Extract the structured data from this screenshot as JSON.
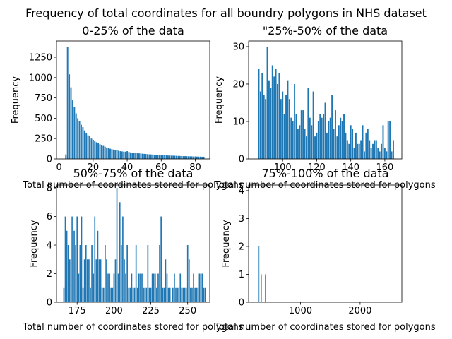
{
  "suptitle": "Frequency of total coordinates for all boundry polygons in NHS dataset",
  "bar_color": "#1f77b4",
  "chart_data": [
    {
      "type": "bar",
      "title": "0-25% of the data",
      "xlabel": "Total number of coordinates stored for polygons",
      "ylabel": "Frequency",
      "xlim": [
        -1.5,
        88.5
      ],
      "ylim": [
        0,
        1450
      ],
      "xticks": [
        0,
        20,
        40,
        60,
        80
      ],
      "xtick_labels": [
        "0",
        "20",
        "40",
        "60",
        "80"
      ],
      "yticks": [
        0,
        250,
        500,
        750,
        1000,
        1250
      ],
      "ytick_labels": [
        "0",
        "250",
        "500",
        "750",
        "1000",
        "1250"
      ],
      "grid": false,
      "bar_width": 0.8,
      "x": [
        4,
        5,
        6,
        7,
        8,
        9,
        10,
        11,
        12,
        13,
        14,
        15,
        16,
        17,
        18,
        19,
        20,
        21,
        22,
        23,
        24,
        25,
        26,
        27,
        28,
        29,
        30,
        31,
        32,
        33,
        34,
        35,
        36,
        37,
        38,
        39,
        40,
        41,
        42,
        43,
        44,
        45,
        46,
        47,
        48,
        49,
        50,
        51,
        52,
        53,
        54,
        55,
        56,
        57,
        58,
        59,
        60,
        61,
        62,
        63,
        64,
        65,
        66,
        67,
        68,
        69,
        70,
        71,
        72,
        73,
        74,
        75,
        76,
        77,
        78,
        79,
        80,
        81,
        82,
        83,
        84,
        85
      ],
      "values": [
        55,
        1375,
        1040,
        880,
        720,
        640,
        560,
        500,
        460,
        420,
        390,
        350,
        320,
        290,
        280,
        250,
        235,
        220,
        205,
        195,
        180,
        170,
        160,
        150,
        140,
        130,
        125,
        120,
        115,
        110,
        108,
        100,
        95,
        92,
        90,
        88,
        95,
        85,
        80,
        78,
        75,
        72,
        70,
        68,
        66,
        64,
        62,
        60,
        58,
        56,
        55,
        54,
        52,
        50,
        48,
        47,
        46,
        45,
        44,
        43,
        42,
        41,
        40,
        40,
        39,
        38,
        37,
        36,
        35,
        34,
        34,
        33,
        32,
        32,
        31,
        30,
        30,
        29,
        28,
        28,
        27,
        27
      ]
    },
    {
      "type": "bar",
      "title": "\"25%-50% of the data",
      "xlabel": "Total number of coordinates stored for polygons",
      "ylabel": "Frequency",
      "xlim": [
        80,
        170
      ],
      "ylim": [
        0,
        31.5
      ],
      "xticks": [
        100,
        120,
        140,
        160
      ],
      "xtick_labels": [
        "100",
        "120",
        "140",
        "160"
      ],
      "yticks": [
        0,
        10,
        20,
        30
      ],
      "ytick_labels": [
        "0",
        "10",
        "20",
        "30"
      ],
      "grid": false,
      "bar_width": 0.8,
      "x": [
        86,
        87,
        88,
        89,
        90,
        91,
        92,
        93,
        94,
        95,
        96,
        97,
        98,
        99,
        100,
        101,
        102,
        103,
        104,
        105,
        106,
        107,
        108,
        109,
        110,
        111,
        112,
        113,
        114,
        115,
        116,
        117,
        118,
        119,
        120,
        121,
        122,
        123,
        124,
        125,
        126,
        127,
        128,
        129,
        130,
        131,
        132,
        133,
        134,
        135,
        136,
        137,
        138,
        139,
        140,
        141,
        142,
        143,
        144,
        145,
        146,
        147,
        148,
        149,
        150,
        151,
        152,
        153,
        154,
        155,
        156,
        157,
        158,
        159,
        160,
        161,
        162,
        163,
        164,
        165
      ],
      "values": [
        24,
        18,
        23,
        17,
        16,
        30,
        21,
        19,
        25,
        22,
        24,
        20,
        23,
        16,
        18,
        12,
        17,
        21,
        16,
        11,
        10,
        20,
        12,
        8,
        9,
        13,
        13,
        8,
        6,
        19,
        11,
        9,
        18,
        6,
        7,
        10,
        12,
        11,
        12,
        15,
        7,
        10,
        11,
        17,
        8,
        13,
        6,
        9,
        11,
        10,
        12,
        7,
        5,
        4,
        9,
        8,
        3,
        7,
        4,
        4,
        5,
        9,
        2,
        7,
        8,
        5,
        3,
        4,
        5,
        5,
        3,
        2,
        4,
        9,
        3,
        2,
        10,
        10,
        2,
        5
      ]
    },
    {
      "type": "bar",
      "title": "50%-75% of the data",
      "xlabel": "Total number of coordinates stored for polygons",
      "ylabel": "Frequency",
      "xlim": [
        161,
        265
      ],
      "ylim": [
        0,
        8.2
      ],
      "xticks": [
        175,
        200,
        225,
        250
      ],
      "xtick_labels": [
        "175",
        "200",
        "225",
        "250"
      ],
      "yticks": [
        0,
        2,
        4,
        6,
        8
      ],
      "ytick_labels": [
        "0",
        "2",
        "4",
        "6",
        "8"
      ],
      "grid": false,
      "bar_width": 0.8,
      "x": [
        166,
        167,
        168,
        169,
        170,
        171,
        172,
        173,
        174,
        175,
        176,
        177,
        178,
        179,
        180,
        181,
        182,
        183,
        184,
        185,
        186,
        187,
        188,
        189,
        190,
        191,
        192,
        193,
        194,
        195,
        196,
        197,
        198,
        199,
        200,
        201,
        202,
        203,
        204,
        205,
        206,
        207,
        208,
        209,
        210,
        211,
        212,
        213,
        214,
        215,
        216,
        217,
        218,
        219,
        220,
        221,
        222,
        223,
        224,
        225,
        226,
        227,
        228,
        229,
        230,
        231,
        232,
        233,
        234,
        235,
        236,
        237,
        238,
        239,
        240,
        241,
        242,
        243,
        244,
        245,
        246,
        247,
        248,
        249,
        250,
        251,
        252,
        253,
        254,
        255,
        256,
        257,
        258,
        259,
        260,
        261,
        262
      ],
      "values": [
        1,
        6,
        5,
        4,
        3,
        6,
        6,
        5,
        4,
        6,
        2,
        4,
        6,
        1,
        3,
        4,
        3,
        3,
        1,
        4,
        2,
        6,
        3,
        5,
        3,
        3,
        1,
        1,
        4,
        3,
        2,
        2,
        1,
        1,
        2,
        3,
        8,
        2,
        7,
        4,
        6,
        3,
        2,
        4,
        1,
        1,
        2,
        1,
        1,
        4,
        1,
        2,
        2,
        2,
        1,
        1,
        1,
        4,
        1,
        1,
        2,
        2,
        2,
        1,
        2,
        4,
        6,
        1,
        1,
        3,
        2,
        1,
        1,
        0,
        1,
        2,
        1,
        1,
        1,
        2,
        1,
        1,
        1,
        1,
        4,
        3,
        1,
        1,
        2,
        1,
        1,
        1,
        2,
        2,
        2,
        1,
        1
      ]
    },
    {
      "type": "bar",
      "title": "75%-100% of the data",
      "xlabel": "Total number of coordinates stored for polygons",
      "ylabel": "Frequency",
      "xlim": [
        130,
        2700
      ],
      "ylim": [
        0,
        4.2
      ],
      "xticks": [
        1000,
        2000
      ],
      "xtick_labels": [
        "1000",
        "2000"
      ],
      "yticks": [
        0,
        1,
        2,
        3,
        4
      ],
      "ytick_labels": [
        "0",
        "1",
        "2",
        "3",
        "4"
      ],
      "grid": false,
      "bar_width": 10,
      "x": [
        305,
        345,
        410
      ],
      "values": [
        2,
        1,
        1
      ]
    }
  ]
}
